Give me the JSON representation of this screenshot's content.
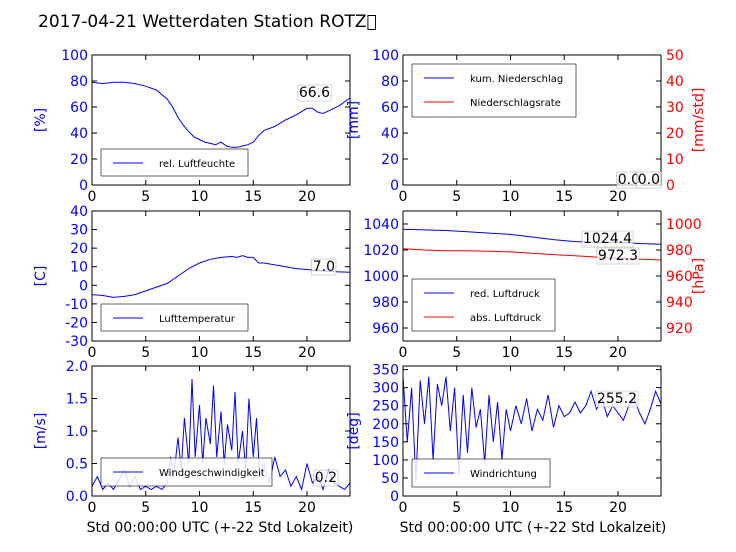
{
  "title": "2017-04-21 Wetterdaten Station ROTZ\u0000",
  "xlabel": "Std 00:00:00 UTC (+-22 Std Lokalzeit)",
  "colors": {
    "primary": "#0000ff",
    "secondary": "#ff0000",
    "text": "#000000"
  },
  "chart_data": [
    {
      "type": "line",
      "ylabel": "[%]",
      "xlim": [
        0,
        24
      ],
      "ylim": [
        0,
        100
      ],
      "xticks": [
        0,
        5,
        10,
        15,
        20
      ],
      "yticks": [
        0,
        20,
        40,
        60,
        80,
        100
      ],
      "legend": "bottom-left",
      "annotation": "66.6",
      "series": [
        {
          "name": "rel. Luftfeuchte",
          "color": "#0000ff",
          "x": [
            0,
            1,
            2,
            3,
            4,
            5,
            6,
            7,
            7.5,
            8,
            8.5,
            9,
            9.5,
            10,
            10.5,
            11,
            11.5,
            12,
            12.5,
            13,
            13.5,
            14,
            14.5,
            15,
            15.5,
            16,
            17,
            18,
            19,
            20,
            20.5,
            21,
            21.5,
            22,
            23,
            24
          ],
          "y": [
            79,
            78,
            79,
            79,
            78,
            76,
            73,
            66,
            60,
            52,
            46,
            41,
            37,
            35,
            33,
            32,
            31,
            33,
            30,
            29,
            29,
            30,
            31,
            33,
            38,
            42,
            45,
            50,
            54,
            59,
            59,
            56,
            55,
            57,
            61,
            67
          ]
        }
      ]
    },
    {
      "type": "line",
      "ylabel": "[mm]",
      "y2label": "[mm/std]",
      "xlim": [
        0,
        24
      ],
      "ylim": [
        0,
        100
      ],
      "y2lim": [
        0,
        50
      ],
      "xticks": [
        0,
        5,
        10,
        15,
        20
      ],
      "yticks": [
        0,
        20,
        40,
        60,
        80,
        100
      ],
      "y2ticks": [
        0,
        10,
        20,
        30,
        40,
        50
      ],
      "legend": "top-left",
      "annotation": "0.0",
      "annotation2": "0.0",
      "series": [
        {
          "name": "kum. Niederschlag",
          "color": "#0000ff",
          "x": [
            0,
            24
          ],
          "y": [
            0,
            0
          ]
        },
        {
          "name": "Niederschlagsrate",
          "color": "#ff0000",
          "x": [
            0,
            24
          ],
          "y": [
            0,
            0
          ],
          "axis": "right"
        }
      ]
    },
    {
      "type": "line",
      "ylabel": "[C]",
      "xlim": [
        0,
        24
      ],
      "ylim": [
        -30,
        40
      ],
      "xticks": [
        0,
        5,
        10,
        15,
        20
      ],
      "yticks": [
        -30,
        -20,
        -10,
        0,
        10,
        20,
        30,
        40
      ],
      "legend": "bottom-left",
      "annotation": "7.0",
      "series": [
        {
          "name": "Lufttemperatur",
          "color": "#0000ff",
          "x": [
            0,
            1,
            2,
            3,
            4,
            5,
            6,
            7,
            8,
            9,
            10,
            11,
            12,
            13,
            13.5,
            14,
            14.5,
            15,
            15.5,
            16,
            17,
            18,
            19,
            20,
            21,
            22,
            23,
            24
          ],
          "y": [
            -5,
            -5.5,
            -6.5,
            -6,
            -5,
            -3,
            -1,
            1,
            5,
            9,
            12,
            14,
            15,
            15.5,
            15,
            16,
            15,
            15,
            12,
            12,
            11,
            10,
            9,
            8.5,
            8,
            7.5,
            7.2,
            7
          ]
        }
      ]
    },
    {
      "type": "line",
      "ylabel": "",
      "y2label": "[hPa]",
      "xlim": [
        0,
        24
      ],
      "ylim": [
        950,
        1050
      ],
      "y2lim": [
        910,
        1010
      ],
      "xticks": [
        0,
        5,
        10,
        15,
        20
      ],
      "yticks": [
        960,
        980,
        1000,
        1020,
        1040
      ],
      "y2ticks": [
        920,
        940,
        960,
        980,
        1000
      ],
      "legend": "bottom-left",
      "annotation": "1024.4",
      "annotation2": "972.3",
      "series": [
        {
          "name": "red. Luftdruck",
          "color": "#0000ff",
          "x": [
            0,
            2,
            4,
            6,
            8,
            10,
            12,
            14,
            16,
            18,
            20,
            22,
            24
          ],
          "y": [
            1036,
            1035.5,
            1035,
            1034,
            1033,
            1032,
            1030,
            1028,
            1026.5,
            1026,
            1026,
            1025,
            1024.4
          ]
        },
        {
          "name": "abs. Luftdruck",
          "color": "#ff0000",
          "axis": "right",
          "x": [
            0,
            2,
            4,
            6,
            8,
            10,
            12,
            14,
            16,
            18,
            20,
            22,
            24
          ],
          "y": [
            981,
            980,
            979.5,
            979.5,
            979,
            978.5,
            977.5,
            976.5,
            975.5,
            974.5,
            973.5,
            973,
            972.3
          ]
        }
      ]
    },
    {
      "type": "line",
      "ylabel": "[m/s]",
      "xlim": [
        0,
        24
      ],
      "ylim": [
        0,
        2.0
      ],
      "xticks": [
        0,
        5,
        10,
        15,
        20
      ],
      "yticks": [
        0.0,
        0.5,
        1.0,
        1.5,
        2.0
      ],
      "legend": "bottom-left",
      "annotation": "0.2",
      "series": [
        {
          "name": "Windgeschwindigkeit",
          "color": "#0000ff",
          "x": [
            0,
            0.5,
            1,
            1.5,
            2,
            2.5,
            3,
            3.5,
            4,
            4.5,
            5,
            5.5,
            6,
            6.5,
            7,
            7.3,
            7.6,
            8,
            8.3,
            8.6,
            9,
            9.3,
            9.6,
            10,
            10.3,
            10.6,
            11,
            11.3,
            11.6,
            12,
            12.3,
            12.6,
            13,
            13.3,
            13.6,
            14,
            14.3,
            14.6,
            15,
            15.3,
            15.6,
            16,
            16.5,
            17,
            17.5,
            18,
            18.5,
            19,
            19.5,
            20,
            20.5,
            21,
            21.5,
            22,
            22.5,
            23,
            23.5,
            24
          ],
          "y": [
            0.15,
            0.3,
            0.1,
            0.2,
            0.1,
            0.25,
            0.4,
            0.15,
            0.3,
            0.1,
            0.15,
            0.1,
            0.15,
            0.1,
            0.2,
            0.6,
            0.3,
            0.9,
            0.4,
            1.2,
            0.5,
            1.8,
            0.6,
            1.4,
            0.5,
            1.2,
            0.8,
            1.7,
            0.6,
            1.3,
            0.5,
            1.1,
            0.7,
            1.6,
            0.5,
            1.0,
            0.4,
            1.5,
            0.6,
            1.2,
            0.3,
            0.5,
            0.2,
            0.6,
            0.3,
            0.4,
            0.15,
            0.3,
            0.1,
            0.5,
            0.2,
            0.3,
            0.1,
            0.4,
            0.2,
            0.15,
            0.1,
            0.2
          ]
        }
      ]
    },
    {
      "type": "line",
      "ylabel": "[deg]",
      "xlim": [
        0,
        24
      ],
      "ylim": [
        0,
        360
      ],
      "xticks": [
        0,
        5,
        10,
        15,
        20
      ],
      "yticks": [
        0,
        50,
        100,
        150,
        200,
        250,
        300,
        350
      ],
      "legend": "bottom-left",
      "annotation": "255.2",
      "series": [
        {
          "name": "Windrichtung",
          "color": "#0000ff",
          "x": [
            0,
            0.4,
            0.8,
            1.2,
            1.6,
            2,
            2.4,
            2.8,
            3.2,
            3.6,
            4,
            4.4,
            4.8,
            5.2,
            5.6,
            6,
            6.4,
            6.8,
            7.2,
            7.6,
            8,
            8.4,
            8.8,
            9.2,
            9.6,
            10,
            10.5,
            11,
            11.5,
            12,
            12.5,
            13,
            13.5,
            14,
            14.5,
            15,
            15.5,
            16,
            16.5,
            17,
            17.5,
            18,
            18.5,
            19,
            19.5,
            20,
            20.5,
            21,
            21.5,
            22,
            22.5,
            23,
            23.5,
            24
          ],
          "y": [
            330,
            150,
            300,
            40,
            320,
            200,
            330,
            100,
            310,
            250,
            330,
            180,
            300,
            60,
            280,
            120,
            300,
            190,
            240,
            90,
            280,
            150,
            260,
            100,
            240,
            180,
            250,
            200,
            270,
            180,
            240,
            210,
            280,
            190,
            250,
            220,
            230,
            260,
            230,
            250,
            290,
            240,
            270,
            220,
            250,
            230,
            210,
            250,
            270,
            230,
            200,
            240,
            290,
            255
          ]
        }
      ]
    }
  ]
}
